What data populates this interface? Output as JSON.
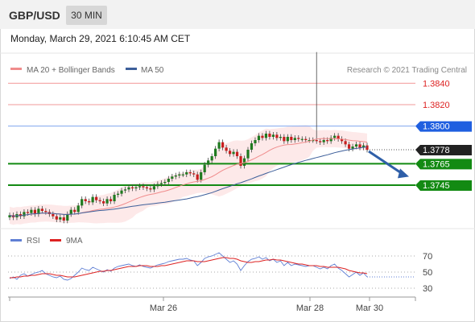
{
  "header": {
    "pair": "GBP/USD",
    "timeframe": "30 MIN"
  },
  "datetime": "Monday, March 29, 2021 6:10:45 AM CET",
  "copyright": "Research © 2021 Trading Central",
  "legend": [
    {
      "label": "MA 20 + Bollinger Bands",
      "color": "#f08c8c"
    },
    {
      "label": "MA 50",
      "color": "#3d5f9a"
    }
  ],
  "rsi_legend": [
    {
      "label": "RSI",
      "color": "#5f7fd4"
    },
    {
      "label": "9MA",
      "color": "#dd2222"
    }
  ],
  "chart_data": [
    {
      "type": "candlestick",
      "title": "GBP/USD",
      "x_ticks": [
        "Mar 26",
        "Mar 28",
        "Mar 30"
      ],
      "price_labels": [
        {
          "value": "1.3840",
          "color": "#dd2222",
          "style": "text"
        },
        {
          "value": "1.3820",
          "color": "#dd2222",
          "style": "text"
        },
        {
          "value": "1.3800",
          "color": "#1f5fe0",
          "style": "tag"
        },
        {
          "value": "1.3778",
          "color": "#222222",
          "style": "tag"
        },
        {
          "value": "1.3765",
          "color": "#138a13",
          "style": "tag"
        },
        {
          "value": "1.3745",
          "color": "#138a13",
          "style": "tag"
        }
      ],
      "horizontal_levels": [
        {
          "value": 1.384,
          "kind": "resistance",
          "color": "#f29a9a"
        },
        {
          "value": 1.382,
          "kind": "resistance",
          "color": "#f29a9a"
        },
        {
          "value": 1.38,
          "kind": "pivot",
          "color": "#7fa6ee"
        },
        {
          "value": 1.3765,
          "kind": "support",
          "color": "#138a13"
        },
        {
          "value": 1.3745,
          "kind": "support",
          "color": "#138a13"
        }
      ],
      "ylim": [
        1.3706,
        1.385
      ],
      "close_prices": [
        1.3717,
        1.3715,
        1.3718,
        1.3716,
        1.372,
        1.3719,
        1.3722,
        1.3718,
        1.3723,
        1.3721,
        1.372,
        1.3718,
        1.3716,
        1.3713,
        1.3715,
        1.3712,
        1.3718,
        1.3722,
        1.372,
        1.3726,
        1.3732,
        1.373,
        1.3729,
        1.3734,
        1.3731,
        1.373,
        1.3728,
        1.3732,
        1.373,
        1.3736,
        1.3737,
        1.374,
        1.3741,
        1.3743,
        1.3742,
        1.3743,
        1.3744,
        1.3743,
        1.3742,
        1.3741,
        1.3744,
        1.3746,
        1.3747,
        1.3748,
        1.3751,
        1.3753,
        1.3754,
        1.3755,
        1.3755,
        1.3757,
        1.3756,
        1.3755,
        1.375,
        1.3757,
        1.3764,
        1.3768,
        1.3772,
        1.3779,
        1.3785,
        1.378,
        1.3777,
        1.3774,
        1.3776,
        1.3772,
        1.3763,
        1.377,
        1.3778,
        1.3784,
        1.3787,
        1.3791,
        1.3789,
        1.3793,
        1.379,
        1.3792,
        1.3789,
        1.379,
        1.3786,
        1.379,
        1.3787,
        1.3789,
        1.3788,
        1.3788,
        1.3787,
        1.3787,
        1.3787,
        1.3786,
        1.3785,
        1.3787,
        1.3786,
        1.3789,
        1.3791,
        1.3788,
        1.3786,
        1.3783,
        1.3779,
        1.3781,
        1.3783,
        1.378,
        1.3782,
        1.3778
      ],
      "spike": {
        "high": 1.3869,
        "bar_index": 85
      },
      "forecast_arrow": "down",
      "pivot": 1.38,
      "current": 1.3778
    },
    {
      "type": "line",
      "title": "RSI",
      "series": [
        {
          "name": "RSI",
          "color": "#5f7fd4"
        },
        {
          "name": "9MA",
          "color": "#dd2222"
        }
      ],
      "y_ticks": [
        70,
        50,
        30
      ],
      "ylim": [
        20,
        80
      ],
      "rsi_values": [
        42,
        44,
        41,
        46,
        48,
        45,
        47,
        49,
        50,
        52,
        48,
        46,
        44,
        43,
        45,
        41,
        40,
        42,
        46,
        50,
        55,
        53,
        52,
        56,
        54,
        52,
        50,
        53,
        51,
        55,
        57,
        58,
        59,
        60,
        58,
        57,
        59,
        57,
        56,
        55,
        57,
        59,
        60,
        61,
        63,
        64,
        65,
        66,
        66,
        67,
        65,
        64,
        58,
        62,
        67,
        69,
        70,
        72,
        74,
        70,
        66,
        62,
        64,
        60,
        52,
        58,
        63,
        66,
        67,
        69,
        66,
        68,
        64,
        66,
        62,
        64,
        58,
        62,
        58,
        60,
        59,
        58,
        57,
        58,
        58,
        56,
        54,
        56,
        54,
        58,
        60,
        55,
        52,
        48,
        44,
        47,
        50,
        46,
        49,
        44
      ],
      "ma_values": [
        43,
        43,
        44,
        44,
        45,
        45,
        46,
        46,
        47,
        48,
        48,
        48,
        47,
        46,
        46,
        45,
        44,
        44,
        44,
        45,
        46,
        47,
        48,
        49,
        50,
        51,
        51,
        52,
        52,
        53,
        54,
        55,
        56,
        57,
        57,
        57,
        58,
        58,
        58,
        57,
        57,
        57,
        58,
        58,
        59,
        60,
        61,
        62,
        63,
        64,
        64,
        64,
        63,
        63,
        63,
        64,
        65,
        66,
        67,
        68,
        68,
        67,
        67,
        66,
        64,
        63,
        62,
        62,
        63,
        63,
        64,
        65,
        65,
        66,
        65,
        65,
        64,
        63,
        62,
        61,
        60,
        60,
        59,
        58,
        58,
        58,
        57,
        57,
        56,
        56,
        56,
        56,
        55,
        54,
        52,
        51,
        50,
        49,
        49,
        48
      ]
    }
  ]
}
